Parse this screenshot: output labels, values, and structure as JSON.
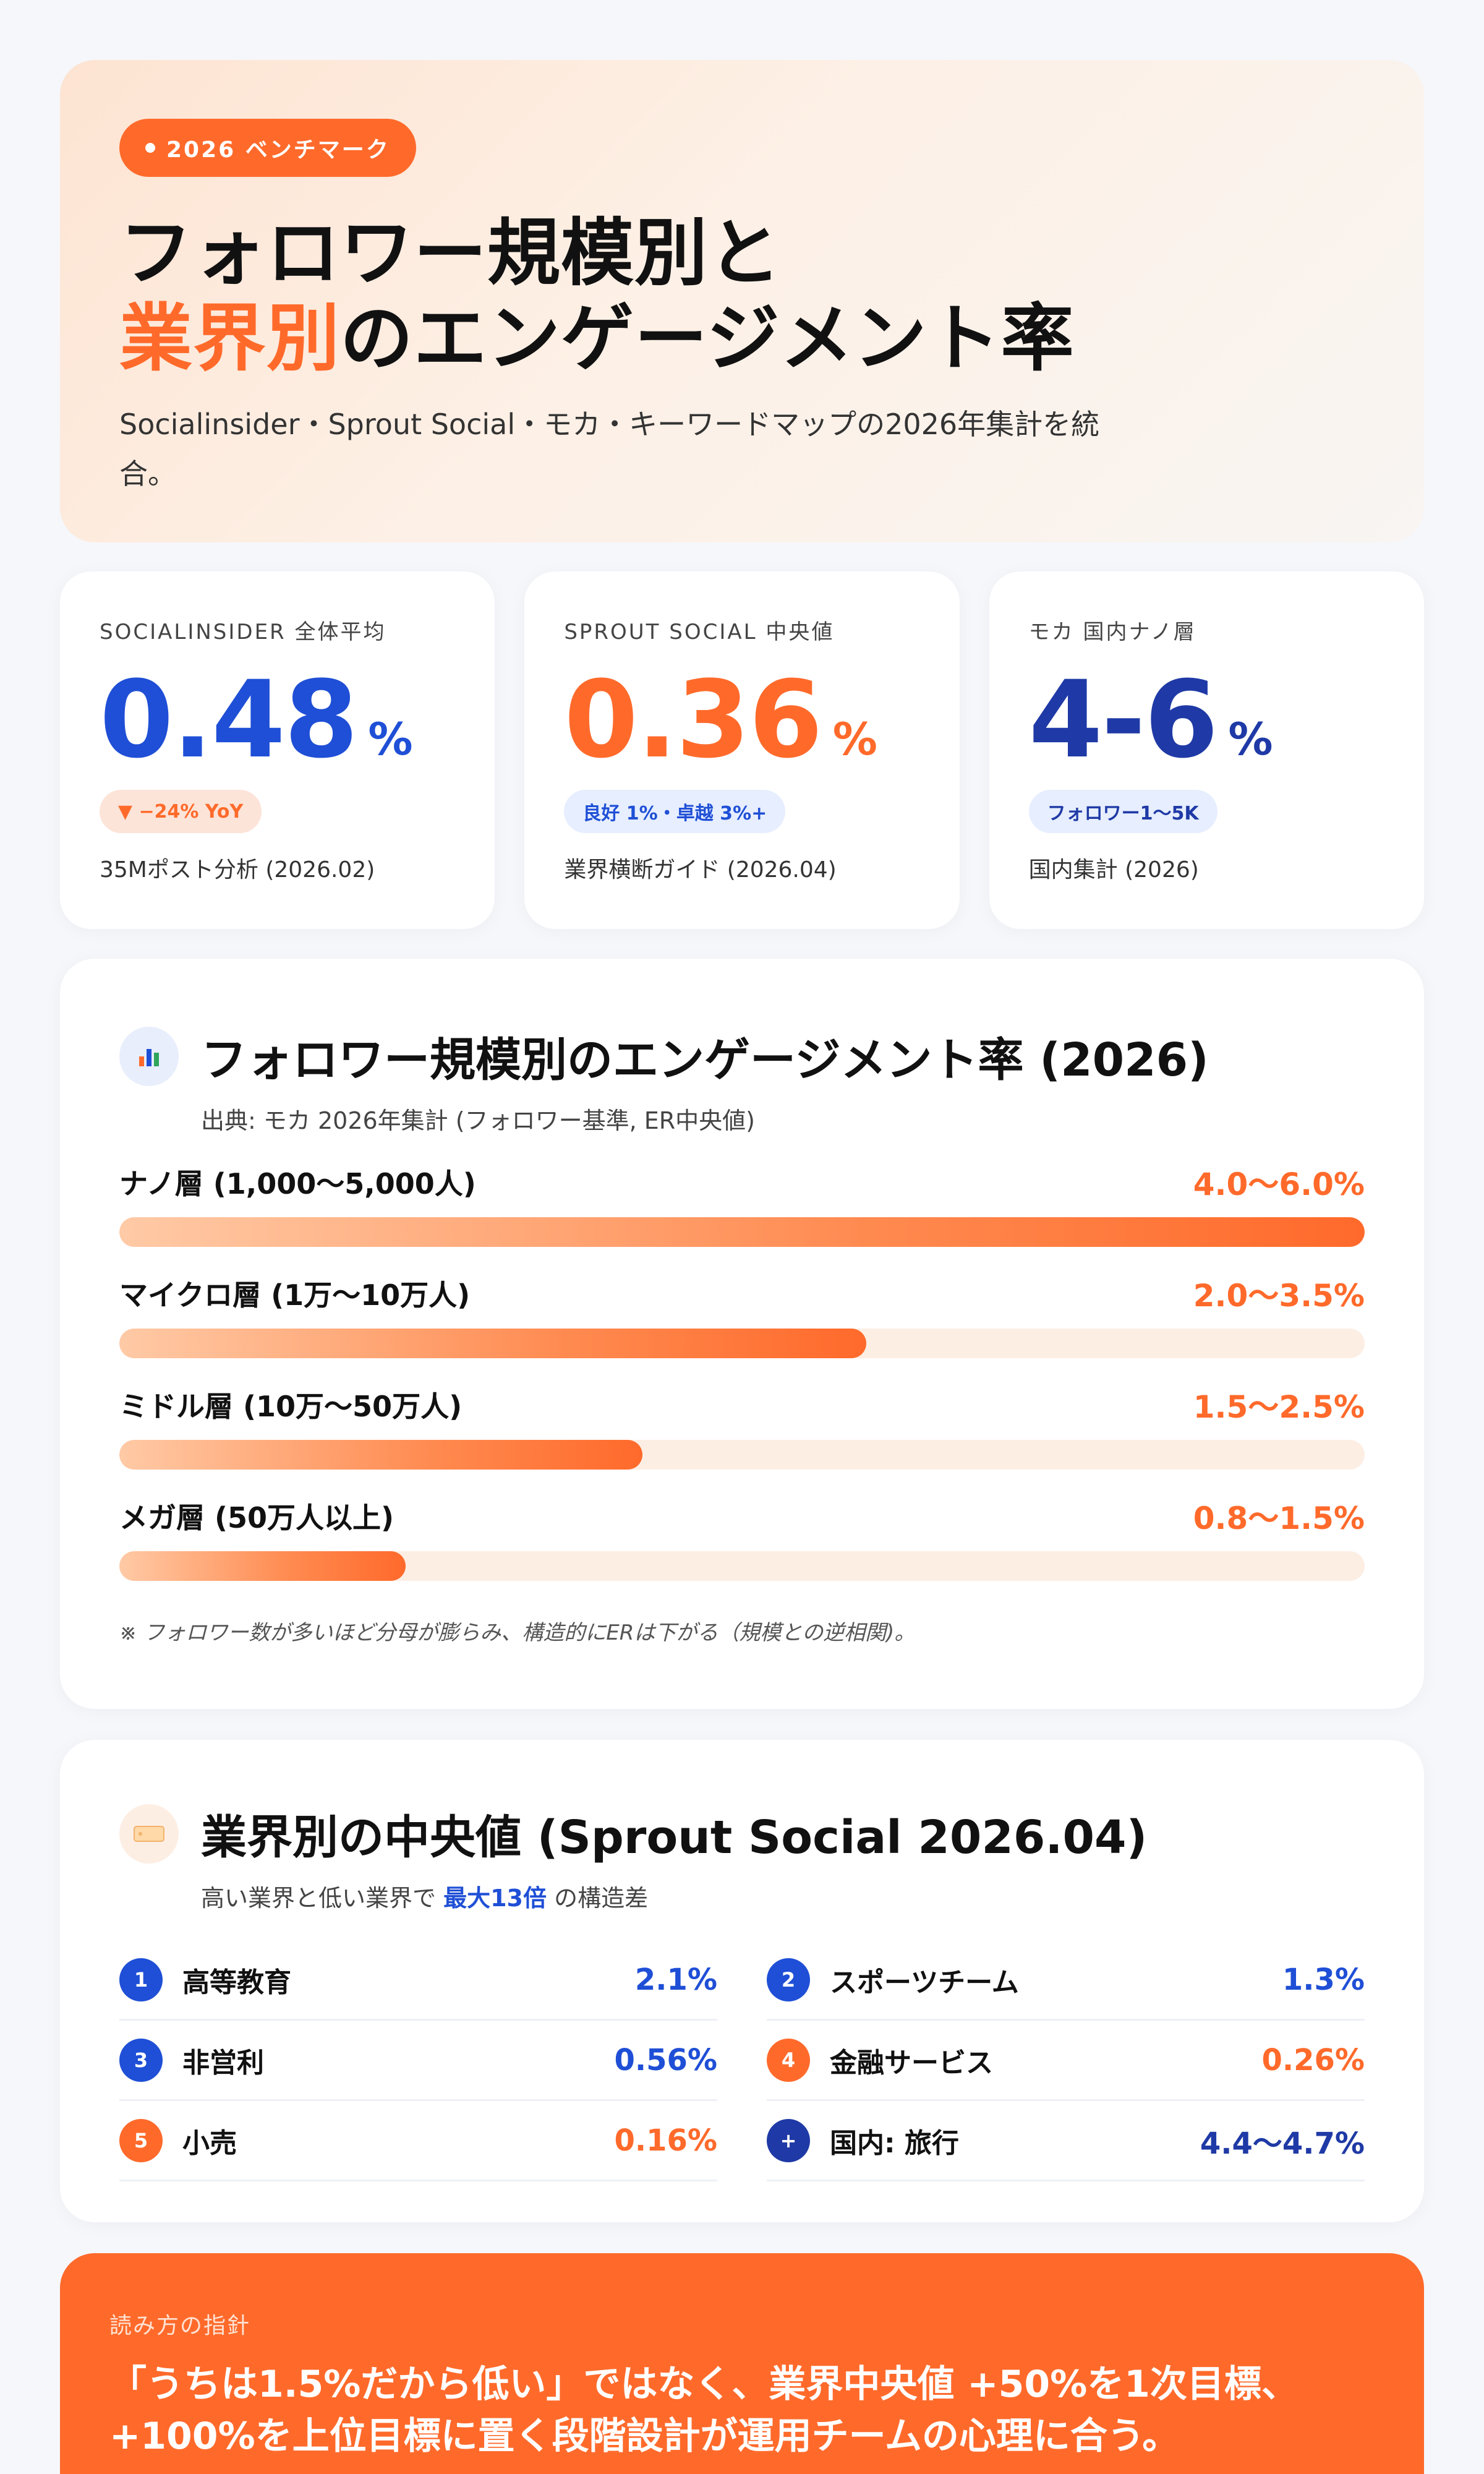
{
  "hero": {
    "pill": "2026 ベンチマーク",
    "title_line1": "フォロワー規模別と",
    "title_accent": "業界別",
    "title_rest": "のエンゲージメント率",
    "description": "Socialinsider・Sprout Social・モカ・キーワードマップの2026年集計を統合。"
  },
  "stats": [
    {
      "label": "SOCIALINSIDER 全体平均",
      "value": "0.48",
      "unit": "%",
      "badge": "▼ −24% YoY",
      "source": "35Mポスト分析 (2026.02)",
      "color": "#1f4fd6"
    },
    {
      "label": "SPROUT SOCIAL 中央値",
      "value": "0.36",
      "unit": "%",
      "badge": "良好 1%・卓越 3%+",
      "source": "業界横断ガイド (2026.04)",
      "color": "#ff6a2b"
    },
    {
      "label": "モカ 国内ナノ層",
      "value": "4-6",
      "unit": "%",
      "badge": "フォロワー1〜5K",
      "source": "国内集計 (2026)",
      "color": "#1f3aa6"
    }
  ],
  "tiers": {
    "title": "フォロワー規模別のエンゲージメント率 (2026)",
    "subtitle": "出典: モカ 2026年集計 (フォロワー基準, ER中央値)",
    "icon": "bar-chart-icon",
    "items": [
      {
        "name": "ナノ層 (1,000〜5,000人)",
        "value": "4.0〜6.0%",
        "level": 1.0
      },
      {
        "name": "マイクロ層 (1万〜10万人)",
        "value": "2.0〜3.5%",
        "level": 0.6
      },
      {
        "name": "ミドル層 (10万〜50万人)",
        "value": "1.5〜2.5%",
        "level": 0.42
      },
      {
        "name": "メガ層 (50万人以上)",
        "value": "0.8〜1.5%",
        "level": 0.23
      }
    ],
    "note": "※ フォロワー数が多いほど分母が膨らみ、構造的にERは下がる（規模との逆相関)。"
  },
  "industry": {
    "title": "業界別の中央値 (Sprout Social 2026.04)",
    "subtitle_pre": "高い業界と低い業界で",
    "subtitle_strong": "最大13倍",
    "subtitle_post": "の構造差",
    "icon": "tag-icon",
    "items": [
      {
        "no": "1",
        "name": "高等教育",
        "value": "2.1%",
        "color": "#1f4fd6"
      },
      {
        "no": "2",
        "name": "スポーツチーム",
        "value": "1.3%",
        "color": "#1f4fd6"
      },
      {
        "no": "3",
        "name": "非営利",
        "value": "0.56%",
        "color": "#1f4fd6"
      },
      {
        "no": "4",
        "name": "金融サービス",
        "value": "0.26%",
        "color": "#ff6a2b"
      },
      {
        "no": "5",
        "name": "小売",
        "value": "0.16%",
        "color": "#ff6a2b"
      },
      {
        "no": "+",
        "name": "国内: 旅行",
        "value": "4.4〜4.7%",
        "color": "#1f3aa6"
      }
    ]
  },
  "guide": {
    "label": "読み方の指針",
    "text": "「うちは1.5%だから低い」ではなく、業界中央値 +50%を1次目標、+100%を上位目標に置く段階設計が運用チームの心理に合う。"
  }
}
